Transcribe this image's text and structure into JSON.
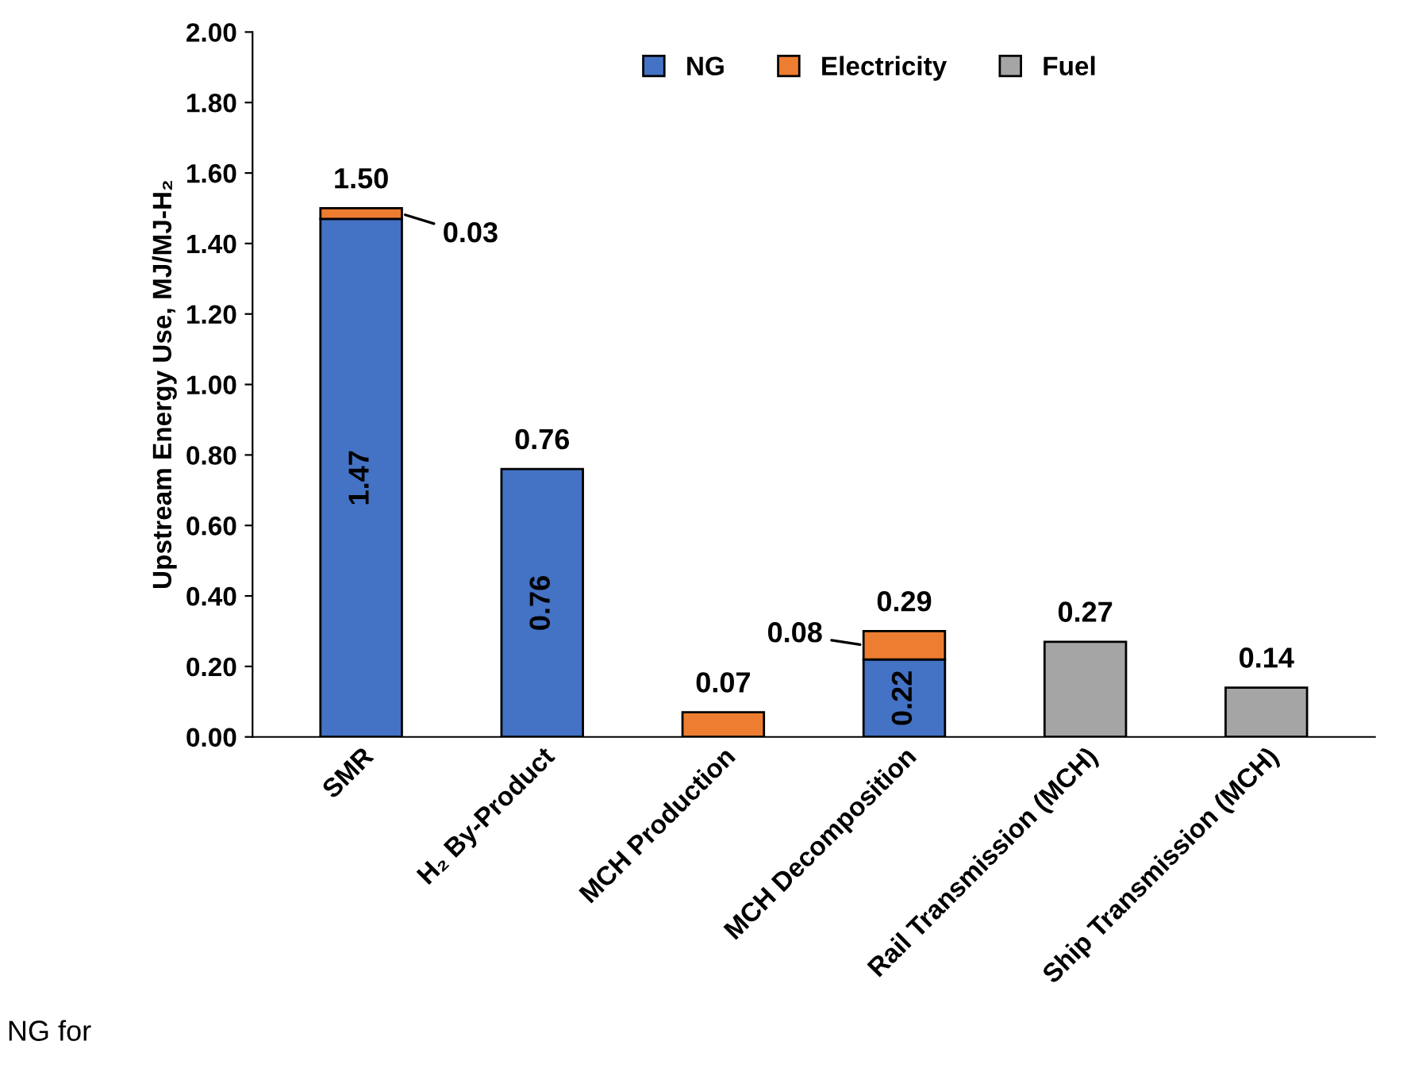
{
  "chart_data": {
    "type": "bar",
    "stacked": true,
    "categories": [
      "SMR",
      "H₂ By-Product",
      "MCH Production",
      "MCH Decomposition",
      "Rail Transmission (MCH)",
      "Ship Transmission (MCH)"
    ],
    "series": [
      {
        "name": "NG",
        "color": "#4472c4",
        "values": [
          1.47,
          0.76,
          null,
          0.22,
          null,
          null
        ],
        "value_labels": [
          "1.47",
          "0.76",
          null,
          "0.22",
          null,
          null
        ]
      },
      {
        "name": "Electricity",
        "color": "#ed7d31",
        "values": [
          0.03,
          null,
          0.07,
          0.08,
          null,
          null
        ],
        "value_labels": [
          "0.03",
          null,
          null,
          "0.08",
          null,
          null
        ]
      },
      {
        "name": "Fuel",
        "color": "#a5a5a5",
        "values": [
          null,
          null,
          null,
          null,
          0.27,
          0.14
        ]
      }
    ],
    "totals": [
      "1.50",
      "0.76",
      "0.07",
      "0.29",
      "0.27",
      "0.14"
    ],
    "ylabel": "Upstream Energy Use, MJ/MJ-H₂",
    "ylim": [
      0,
      2
    ],
    "yticks": [
      {
        "value": 0,
        "label": "0.00"
      },
      {
        "value": 0.2,
        "label": "0.20"
      },
      {
        "value": 0.4,
        "label": "0.40"
      },
      {
        "value": 0.6,
        "label": "0.60"
      },
      {
        "value": 0.8,
        "label": "0.80"
      },
      {
        "value": 1.0,
        "label": "1.00"
      },
      {
        "value": 1.2,
        "label": "1.20"
      },
      {
        "value": 1.4,
        "label": "1.40"
      },
      {
        "value": 1.6,
        "label": "1.60"
      },
      {
        "value": 1.8,
        "label": "1.80"
      },
      {
        "value": 2.0,
        "label": "2.00"
      }
    ],
    "grid": false,
    "legend": "top",
    "annotations": [
      "NG for"
    ]
  }
}
